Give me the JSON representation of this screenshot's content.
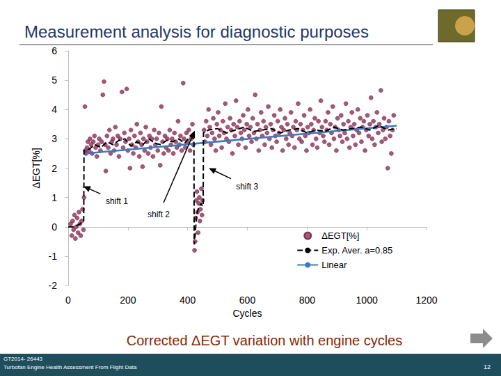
{
  "chart_data": {
    "type": "scatter",
    "title": "Measurement analysis for diagnostic purposes",
    "subtitle": "Corrected ΔEGT variation with engine cycles",
    "x_label": "Cycles",
    "y_label": "ΔEGT[%]",
    "xlim": [
      0,
      1200
    ],
    "xticks": [
      0,
      200,
      400,
      600,
      800,
      1000,
      1200
    ],
    "ylim": [
      -2,
      6
    ],
    "yticks": [
      -2,
      -1,
      0,
      1,
      2,
      3,
      4,
      5,
      6
    ],
    "grid": false,
    "legend": "lower right",
    "series": [
      {
        "name": "ΔEGT[%]",
        "type": "scatter",
        "marker": "circle",
        "color": "#8E2F57",
        "x": [
          8,
          12,
          15,
          18,
          21,
          24,
          27,
          30,
          33,
          36,
          39,
          42,
          45,
          48,
          51,
          53,
          56,
          57,
          60,
          63,
          66,
          70,
          73,
          77,
          80,
          84,
          88,
          92,
          96,
          100,
          104,
          108,
          112,
          116,
          120,
          124,
          126,
          130,
          134,
          138,
          142,
          146,
          150,
          154,
          158,
          162,
          166,
          170,
          174,
          180,
          184,
          188,
          192,
          196,
          200,
          204,
          207,
          210,
          214,
          218,
          222,
          226,
          230,
          234,
          238,
          242,
          246,
          249,
          252,
          256,
          260,
          264,
          268,
          272,
          276,
          280,
          284,
          288,
          292,
          296,
          300,
          304,
          308,
          312,
          316,
          320,
          324,
          328,
          332,
          336,
          340,
          344,
          348,
          352,
          356,
          360,
          364,
          368,
          372,
          376,
          380,
          385,
          388,
          392,
          396,
          400,
          404,
          408,
          412,
          416,
          419,
          423,
          425,
          427,
          429,
          431,
          433,
          435,
          437,
          439,
          441,
          443,
          446,
          448,
          450,
          455,
          458,
          462,
          466,
          470,
          474,
          478,
          482,
          486,
          490,
          494,
          498,
          502,
          506,
          510,
          514,
          518,
          522,
          526,
          530,
          534,
          538,
          542,
          546,
          550,
          554,
          558,
          562,
          566,
          570,
          574,
          578,
          582,
          586,
          590,
          594,
          598,
          602,
          606,
          610,
          614,
          618,
          622,
          626,
          630,
          634,
          638,
          642,
          646,
          650,
          654,
          658,
          662,
          666,
          670,
          674,
          678,
          682,
          686,
          690,
          694,
          698,
          702,
          706,
          710,
          714,
          718,
          722,
          726,
          730,
          734,
          738,
          742,
          746,
          750,
          754,
          758,
          762,
          766,
          770,
          774,
          778,
          782,
          786,
          790,
          794,
          798,
          802,
          806,
          810,
          814,
          818,
          822,
          826,
          830,
          834,
          838,
          842,
          846,
          850,
          854,
          858,
          862,
          866,
          870,
          874,
          878,
          882,
          886,
          890,
          894,
          898,
          902,
          906,
          910,
          914,
          918,
          922,
          926,
          930,
          934,
          938,
          942,
          946,
          950,
          954,
          958,
          962,
          966,
          970,
          974,
          978,
          982,
          986,
          990,
          994,
          998,
          1002,
          1006,
          1010,
          1014,
          1018,
          1022,
          1026,
          1030,
          1034,
          1038,
          1042,
          1047,
          1050,
          1054,
          1058,
          1062,
          1066,
          1070,
          1074,
          1078,
          1082,
          1086,
          1090
        ],
        "values": [
          0.1,
          -0.3,
          0.2,
          -0.1,
          0.4,
          -0.4,
          0.0,
          0.3,
          -0.2,
          0.5,
          0.1,
          -0.3,
          0.2,
          0.6,
          -0.1,
          1.0,
          4.1,
          2.6,
          2.5,
          2.7,
          2.9,
          2.6,
          3.0,
          2.8,
          2.5,
          2.9,
          3.1,
          2.7,
          2.4,
          2.8,
          3.0,
          2.6,
          2.9,
          4.5,
          4.95,
          2.8,
          1.9,
          3.1,
          2.7,
          3.3,
          2.5,
          2.9,
          3.0,
          2.6,
          3.4,
          2.8,
          3.1,
          2.4,
          3.0,
          4.6,
          2.7,
          3.2,
          2.9,
          4.7,
          2.6,
          3.0,
          2.0,
          3.3,
          2.8,
          2.5,
          3.1,
          2.7,
          3.5,
          2.9,
          2.4,
          3.2,
          2.8,
          2.05,
          3.0,
          2.6,
          3.4,
          2.9,
          2.5,
          3.1,
          2.7,
          3.0,
          2.4,
          3.3,
          2.8,
          3.0,
          2.6,
          3.2,
          2.1,
          4.1,
          2.9,
          2.5,
          3.1,
          2.7,
          3.0,
          2.6,
          3.3,
          2.8,
          3.0,
          2.5,
          3.2,
          2.9,
          2.7,
          3.6,
          2.8,
          3.1,
          2.6,
          4.9,
          3.0,
          2.7,
          3.2,
          2.9,
          3.3,
          2.6,
          3.0,
          3.5,
          2.8,
          -0.8,
          -0.5,
          0.3,
          0.9,
          1.2,
          0.5,
          -0.2,
          0.8,
          1.0,
          0.2,
          0.6,
          1.3,
          0.4,
          0.9,
          3.3,
          2.9,
          3.6,
          3.1,
          4.0,
          3.4,
          2.8,
          3.2,
          3.7,
          3.0,
          2.6,
          3.5,
          3.9,
          3.1,
          3.3,
          2.7,
          3.6,
          3.2,
          4.2,
          3.0,
          3.4,
          2.9,
          3.7,
          3.3,
          2.5,
          3.5,
          3.1,
          4.3,
          3.4,
          2.8,
          3.6,
          3.2,
          3.0,
          3.8,
          3.3,
          2.7,
          3.5,
          4.0,
          3.1,
          3.4,
          2.9,
          3.7,
          3.2,
          4.5,
          3.0,
          3.5,
          2.6,
          3.3,
          3.9,
          3.1,
          3.6,
          2.8,
          3.4,
          3.2,
          4.1,
          3.0,
          3.5,
          2.7,
          3.3,
          3.8,
          3.1,
          2.9,
          3.6,
          3.2,
          4.0,
          3.4,
          2.6,
          3.3,
          3.7,
          3.0,
          3.5,
          2.8,
          3.2,
          3.9,
          3.1,
          3.4,
          2.7,
          3.6,
          3.3,
          4.2,
          3.0,
          3.5,
          2.9,
          3.3,
          3.8,
          3.1,
          2.6,
          3.4,
          3.2,
          4.0,
          3.5,
          2.8,
          3.3,
          3.7,
          3.0,
          2.7,
          3.6,
          3.2,
          4.3,
          3.4,
          3.1,
          2.9,
          3.6,
          3.3,
          3.9,
          2.8,
          3.5,
          3.2,
          4.1,
          3.0,
          3.4,
          2.6,
          3.7,
          3.3,
          3.1,
          3.8,
          2.9,
          3.5,
          3.2,
          4.2,
          3.0,
          3.6,
          2.7,
          3.4,
          3.9,
          3.1,
          3.5,
          2.8,
          3.3,
          4.0,
          3.2,
          3.7,
          2.9,
          3.4,
          3.6,
          2.6,
          3.3,
          3.8,
          3.1,
          3.5,
          4.4,
          3.0,
          3.6,
          2.8,
          3.4,
          3.9,
          3.2,
          3.5,
          4.65,
          2.9,
          3.3,
          3.7,
          3.0,
          3.4,
          2.0,
          3.6,
          3.1,
          2.5,
          3.3,
          3.8
        ]
      },
      {
        "name": "Exp. Aver. a=0.85",
        "type": "line",
        "line_style": "dashed",
        "color": "#000000",
        "x": [
          0,
          20,
          40,
          52,
          53,
          70,
          90,
          110,
          130,
          150,
          170,
          190,
          210,
          230,
          250,
          270,
          290,
          310,
          330,
          350,
          370,
          390,
          410,
          421,
          422,
          425,
          430,
          435,
          440,
          445,
          450,
          452,
          453,
          470,
          500,
          530,
          560,
          590,
          620,
          650,
          680,
          710,
          740,
          770,
          800,
          830,
          860,
          890,
          920,
          950,
          980,
          1010,
          1040,
          1070,
          1100
        ],
        "values": [
          0.0,
          0.0,
          0.1,
          0.2,
          2.6,
          2.65,
          2.8,
          2.7,
          2.9,
          2.8,
          2.95,
          3.0,
          2.75,
          2.9,
          2.8,
          3.0,
          2.85,
          2.8,
          2.95,
          2.9,
          3.0,
          2.85,
          3.1,
          3.0,
          -0.6,
          -0.3,
          0.4,
          0.6,
          0.7,
          0.8,
          0.7,
          0.75,
          3.2,
          3.3,
          3.35,
          3.2,
          3.3,
          3.4,
          3.25,
          3.3,
          3.35,
          3.2,
          3.3,
          3.35,
          3.2,
          3.3,
          3.25,
          3.4,
          3.3,
          3.35,
          3.4,
          3.3,
          3.45,
          3.3,
          3.35
        ]
      },
      {
        "name": "Linear",
        "type": "line",
        "line_style": "solid",
        "color": "#3A7BBF",
        "x": [
          55,
          1100
        ],
        "values": [
          2.5,
          3.45
        ]
      }
    ],
    "annotations": [
      {
        "text": "shift 1",
        "x": 51,
        "y": 1.38
      },
      {
        "text": "shift 2",
        "x": 424,
        "y": 3.28
      },
      {
        "text": "shift 3",
        "x": 471,
        "y": 2.0
      }
    ]
  },
  "footer": {
    "reference": "GT2014- 26443",
    "paper": "Turbofan Engine Health Assessment From Flight Data",
    "page": "12"
  }
}
